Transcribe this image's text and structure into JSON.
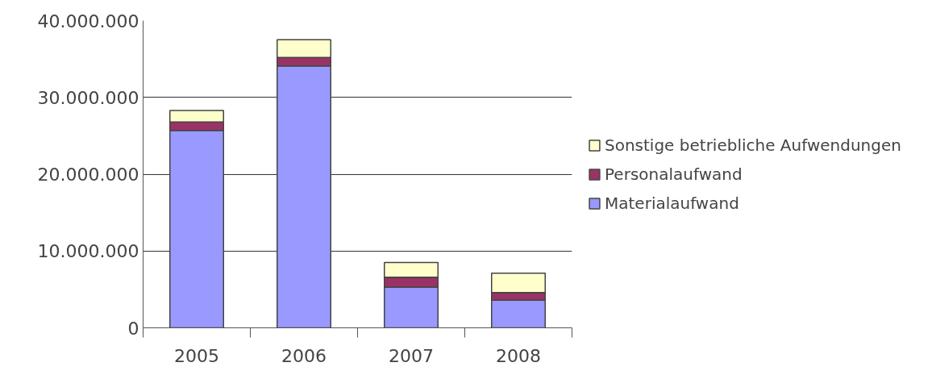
{
  "chart_data": {
    "type": "bar",
    "stacked": true,
    "categories": [
      "2005",
      "2006",
      "2007",
      "2008"
    ],
    "series": [
      {
        "name": "Materialaufwand",
        "color": "#9999ff",
        "values": [
          25700000,
          34100000,
          5300000,
          3600000
        ]
      },
      {
        "name": "Personalaufwand",
        "color": "#993366",
        "values": [
          1100000,
          1100000,
          1300000,
          1000000
        ]
      },
      {
        "name": "Sonstige betriebliche Aufwendungen",
        "color": "#ffffcc",
        "values": [
          1500000,
          2300000,
          1900000,
          2500000
        ]
      }
    ],
    "ylim": [
      0,
      40000000
    ],
    "yticks": [
      {
        "value": 0,
        "label": "0"
      },
      {
        "value": 10000000,
        "label": "10.000.000"
      },
      {
        "value": 20000000,
        "label": "20.000.000"
      },
      {
        "value": 30000000,
        "label": "30.000.000"
      },
      {
        "value": 40000000,
        "label": "40.000.000"
      }
    ],
    "grid": "y",
    "legend": "right"
  }
}
